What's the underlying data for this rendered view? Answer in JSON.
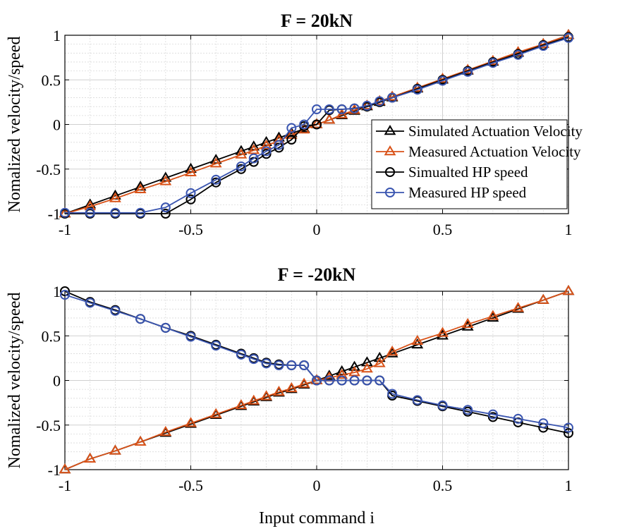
{
  "colors": {
    "sim_act": "#000000",
    "meas_act": "#d95319",
    "sim_hp": "#000000",
    "meas_hp": "#3a55b0"
  },
  "chart_data": [
    {
      "type": "line",
      "title": "F = 20kN",
      "xlabel": "",
      "ylabel": "Nomalized velocity/speed",
      "xlim": [
        -1,
        1
      ],
      "ylim": [
        -1,
        1
      ],
      "xticks": [
        "-1",
        "-0.5",
        "0",
        "0.5",
        "1"
      ],
      "yticks": [
        "-1",
        "-0.5",
        "0",
        "0.5",
        "1"
      ],
      "grid": true,
      "legend_position": "right",
      "x": [
        -1,
        -0.9,
        -0.8,
        -0.7,
        -0.6,
        -0.5,
        -0.4,
        -0.3,
        -0.25,
        -0.2,
        -0.15,
        -0.1,
        -0.05,
        0,
        0.05,
        0.1,
        0.15,
        0.2,
        0.25,
        0.3,
        0.4,
        0.5,
        0.6,
        0.7,
        0.8,
        0.9,
        1
      ],
      "series": [
        {
          "name": "Simulated Actuation Velocity",
          "marker": "triangle",
          "color_key": "sim_act",
          "values": [
            -1,
            -0.9,
            -0.8,
            -0.7,
            -0.6,
            -0.5,
            -0.4,
            -0.3,
            -0.25,
            -0.2,
            -0.15,
            -0.1,
            -0.05,
            0,
            0.05,
            0.1,
            0.15,
            0.2,
            0.25,
            0.3,
            0.4,
            0.5,
            0.6,
            0.7,
            0.8,
            0.9,
            1
          ]
        },
        {
          "name": "Measured Actuation Velocity",
          "marker": "triangle",
          "color_key": "meas_act",
          "values": [
            -1,
            -0.92,
            -0.83,
            -0.73,
            -0.64,
            -0.54,
            -0.44,
            -0.34,
            -0.29,
            -0.24,
            -0.18,
            -0.12,
            -0.06,
            0,
            0.05,
            0.11,
            0.16,
            0.21,
            0.26,
            0.31,
            0.41,
            0.51,
            0.61,
            0.71,
            0.81,
            0.9,
            1
          ]
        },
        {
          "name": "Simualted HP speed",
          "marker": "circle",
          "color_key": "sim_hp",
          "values": [
            -1,
            -1,
            -1,
            -1,
            -1,
            -0.84,
            -0.65,
            -0.5,
            -0.42,
            -0.33,
            -0.26,
            -0.17,
            -0.02,
            0,
            0.16,
            0.17,
            0.18,
            0.2,
            0.25,
            0.3,
            0.4,
            0.5,
            0.6,
            0.7,
            0.79,
            0.89,
            0.98
          ]
        },
        {
          "name": "Measured HP speed",
          "marker": "circle",
          "color_key": "meas_hp",
          "values": [
            -0.99,
            -0.99,
            -0.99,
            -0.99,
            -0.93,
            -0.77,
            -0.62,
            -0.47,
            -0.38,
            -0.3,
            -0.23,
            -0.04,
            0,
            0.17,
            0.17,
            0.17,
            0.18,
            0.21,
            0.26,
            0.3,
            0.39,
            0.49,
            0.59,
            0.69,
            0.78,
            0.88,
            0.97
          ]
        }
      ]
    },
    {
      "type": "line",
      "title": "F = -20kN",
      "xlabel": "Input command i",
      "ylabel": "Nomalized velocity/speed",
      "xlim": [
        -1,
        1
      ],
      "ylim": [
        -1,
        1
      ],
      "xticks": [
        "-1",
        "-0.5",
        "0",
        "0.5",
        "1"
      ],
      "yticks": [
        "-1",
        "-0.5",
        "0",
        "0.5",
        "1"
      ],
      "grid": true,
      "x": [
        -1,
        -0.9,
        -0.8,
        -0.7,
        -0.6,
        -0.5,
        -0.4,
        -0.3,
        -0.25,
        -0.2,
        -0.15,
        -0.1,
        -0.05,
        0,
        0.05,
        0.1,
        0.15,
        0.2,
        0.25,
        0.3,
        0.4,
        0.5,
        0.6,
        0.7,
        0.8,
        0.9,
        1
      ],
      "series": [
        {
          "name": "Simulated Actuation Velocity",
          "marker": "triangle",
          "color_key": "sim_act",
          "values": [
            -1,
            -0.88,
            -0.79,
            -0.69,
            -0.59,
            -0.49,
            -0.39,
            -0.29,
            -0.24,
            -0.19,
            -0.14,
            -0.1,
            -0.05,
            0,
            0.05,
            0.1,
            0.15,
            0.2,
            0.25,
            0.3,
            0.4,
            0.5,
            0.6,
            0.7,
            0.8,
            0.9,
            1
          ]
        },
        {
          "name": "Measured Actuation Velocity",
          "marker": "triangle",
          "color_key": "meas_act",
          "values": [
            -1,
            -0.88,
            -0.79,
            -0.69,
            -0.58,
            -0.48,
            -0.38,
            -0.28,
            -0.23,
            -0.18,
            -0.13,
            -0.09,
            -0.04,
            0,
            0.03,
            0.06,
            0.09,
            0.13,
            0.19,
            0.32,
            0.44,
            0.53,
            0.63,
            0.72,
            0.81,
            0.9,
            1
          ]
        },
        {
          "name": "Simualted HP speed",
          "marker": "circle",
          "color_key": "sim_hp",
          "values": [
            1,
            0.88,
            0.79,
            0.69,
            0.59,
            0.5,
            0.4,
            0.3,
            0.25,
            0.2,
            0.18,
            0.17,
            0.17,
            0,
            0,
            0,
            0,
            0,
            0,
            -0.17,
            -0.23,
            -0.29,
            -0.35,
            -0.41,
            -0.47,
            -0.53,
            -0.59
          ]
        },
        {
          "name": "Measured HP speed",
          "marker": "circle",
          "color_key": "meas_hp",
          "values": [
            0.96,
            0.87,
            0.78,
            0.69,
            0.59,
            0.49,
            0.39,
            0.29,
            0.24,
            0.19,
            0.17,
            0.17,
            0.17,
            0,
            0,
            0,
            0,
            0,
            0,
            -0.15,
            -0.22,
            -0.28,
            -0.33,
            -0.38,
            -0.43,
            -0.48,
            -0.53
          ]
        }
      ]
    }
  ]
}
